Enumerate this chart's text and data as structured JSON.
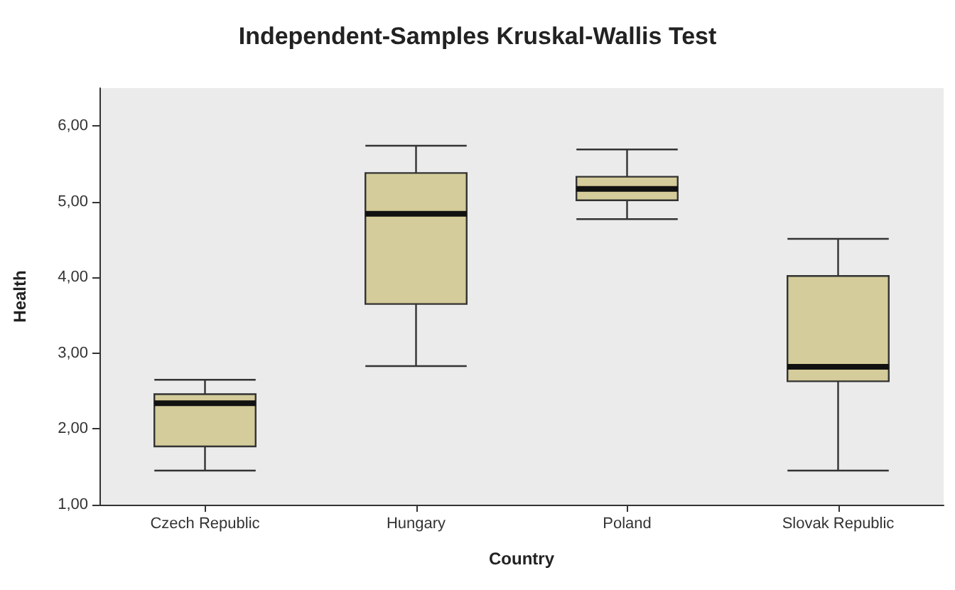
{
  "chart_data": {
    "type": "box",
    "title": "Independent-Samples Kruskal-Wallis Test",
    "xlabel": "Country",
    "ylabel": "Health",
    "categories": [
      "Czech Republic",
      "Hungary",
      "Poland",
      "Slovak Republic"
    ],
    "color": "#d4cc9a",
    "boxes": [
      {
        "low": 1.45,
        "q1": 1.77,
        "median": 2.34,
        "q3": 2.46,
        "high": 2.65
      },
      {
        "low": 2.83,
        "q1": 3.65,
        "median": 4.84,
        "q3": 5.38,
        "high": 5.74
      },
      {
        "low": 4.77,
        "q1": 5.02,
        "median": 5.17,
        "q3": 5.33,
        "high": 5.69
      },
      {
        "low": 1.45,
        "q1": 2.63,
        "median": 2.82,
        "q3": 4.02,
        "high": 4.51
      }
    ],
    "ylim": [
      1,
      6.5
    ],
    "yticks": [
      {
        "value": 1,
        "label": "1,00"
      },
      {
        "value": 2,
        "label": "2,00"
      },
      {
        "value": 3,
        "label": "3,00"
      },
      {
        "value": 4,
        "label": "4,00"
      },
      {
        "value": 5,
        "label": "5,00"
      },
      {
        "value": 6,
        "label": "6,00"
      }
    ],
    "grid": false
  }
}
